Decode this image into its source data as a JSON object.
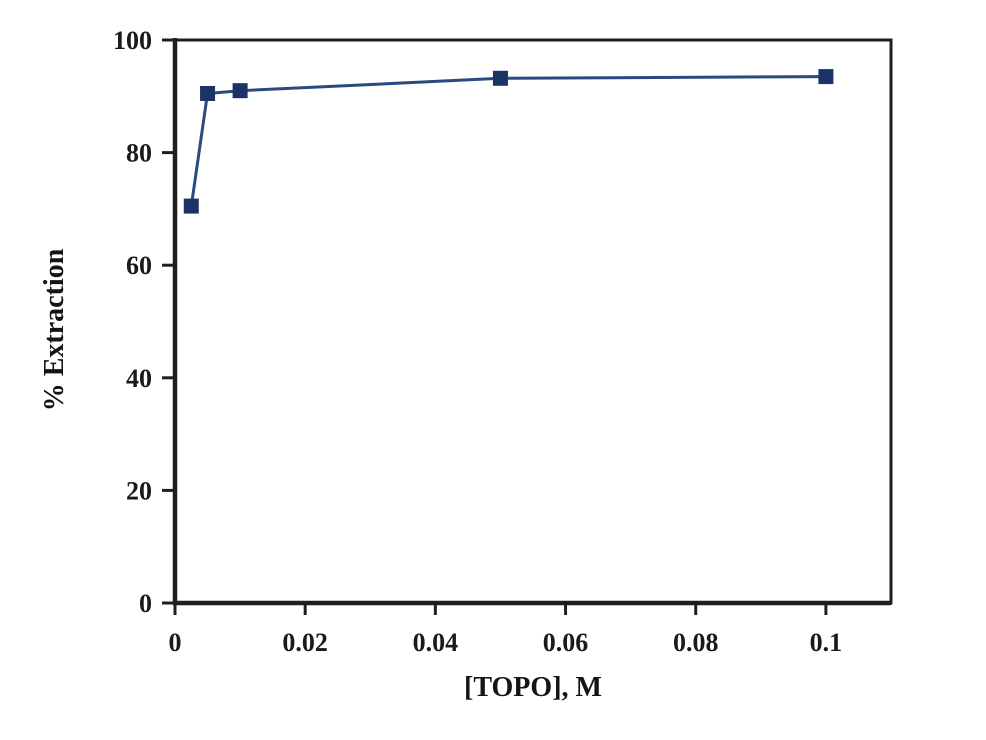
{
  "chart_data": {
    "type": "line",
    "title": "",
    "xlabel": "[TOPO], M",
    "ylabel": "% Extraction",
    "series": [
      {
        "name": "% Extraction",
        "x": [
          0.0025,
          0.005,
          0.01,
          0.05,
          0.1
        ],
        "y": [
          70.5,
          90.5,
          91.0,
          93.2,
          93.5
        ]
      }
    ],
    "marker": "square",
    "grid": false,
    "legend_position": "none",
    "xlim": [
      0,
      0.11
    ],
    "ylim": [
      0,
      100
    ],
    "x_ticks": [
      0,
      0.02,
      0.04,
      0.06,
      0.08,
      0.1
    ],
    "x_tick_labels": [
      "0",
      "0.02",
      "0.04",
      "0.06",
      "0.08",
      "0.1"
    ],
    "y_ticks": [
      0,
      20,
      40,
      60,
      80,
      100
    ],
    "y_tick_labels": [
      "0",
      "20",
      "40",
      "60",
      "80",
      "100"
    ],
    "colors": {
      "line": "#2b4a80",
      "marker": "#1a3468",
      "axis": "#1f1f1f",
      "tick_text": "#1a1a1a",
      "background": "#ffffff"
    }
  }
}
